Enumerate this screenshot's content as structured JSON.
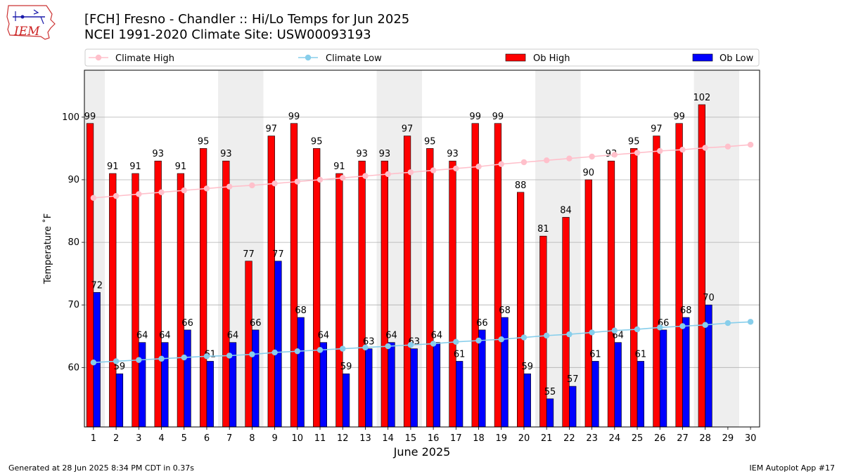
{
  "header": {
    "title_line1": "[FCH] Fresno - Chandler :: Hi/Lo Temps for Jun 2025",
    "title_line2": "NCEI 1991-2020 Climate Site: USW00093193",
    "logo_text": "IEM"
  },
  "footer": {
    "generated": "Generated at 28 Jun 2025 8:34 PM CDT in 0.37s",
    "app": "IEM Autoplot App #17"
  },
  "colors": {
    "ob_high": "#ff0000",
    "ob_low": "#0000ff",
    "climate_high": "#ffc0cb",
    "climate_low": "#87ceeb",
    "weekend_shade": "#eeeeee",
    "grid": "#b0b0b0"
  },
  "chart_data": {
    "type": "bar",
    "xlabel": "June 2025",
    "ylabel": "Temperature ˚F",
    "ylim": [
      50.5,
      107.5
    ],
    "yticks": [
      60,
      70,
      80,
      90,
      100
    ],
    "grid": "horizontal",
    "legend_position": "top",
    "categories": [
      "1",
      "2",
      "3",
      "4",
      "5",
      "6",
      "7",
      "8",
      "9",
      "10",
      "11",
      "12",
      "13",
      "14",
      "15",
      "16",
      "17",
      "18",
      "19",
      "20",
      "21",
      "22",
      "23",
      "24",
      "25",
      "26",
      "27",
      "28",
      "29",
      "30"
    ],
    "shaded_days": [
      [
        1,
        1
      ],
      [
        7,
        8
      ],
      [
        14,
        15
      ],
      [
        21,
        22
      ],
      [
        28,
        29
      ]
    ],
    "series": [
      {
        "name": "Ob High",
        "kind": "bar",
        "values": [
          99,
          91,
          91,
          93,
          91,
          95,
          93,
          77,
          97,
          99,
          95,
          91,
          93,
          93,
          97,
          95,
          93,
          99,
          99,
          88,
          81,
          84,
          90,
          93,
          95,
          97,
          99,
          102,
          null,
          null
        ]
      },
      {
        "name": "Ob Low",
        "kind": "bar",
        "values": [
          72,
          59,
          64,
          64,
          66,
          61,
          64,
          66,
          77,
          68,
          64,
          59,
          63,
          64,
          63,
          64,
          61,
          66,
          68,
          59,
          55,
          57,
          61,
          64,
          61,
          66,
          68,
          70,
          null,
          null
        ]
      },
      {
        "name": "Climate High",
        "kind": "line",
        "values": [
          87.1,
          87.4,
          87.7,
          88.0,
          88.3,
          88.6,
          88.9,
          89.1,
          89.4,
          89.7,
          90.0,
          90.3,
          90.6,
          90.9,
          91.2,
          91.5,
          91.8,
          92.1,
          92.5,
          92.8,
          93.1,
          93.4,
          93.7,
          94.0,
          94.3,
          94.6,
          94.8,
          95.1,
          95.3,
          95.6
        ]
      },
      {
        "name": "Climate Low",
        "kind": "line",
        "values": [
          60.8,
          61.0,
          61.2,
          61.4,
          61.6,
          61.8,
          61.9,
          62.1,
          62.4,
          62.6,
          62.8,
          63.0,
          63.2,
          63.4,
          63.6,
          63.8,
          64.1,
          64.3,
          64.5,
          64.8,
          65.1,
          65.3,
          65.6,
          65.9,
          66.1,
          66.4,
          66.6,
          66.8,
          67.1,
          67.3
        ]
      }
    ]
  }
}
